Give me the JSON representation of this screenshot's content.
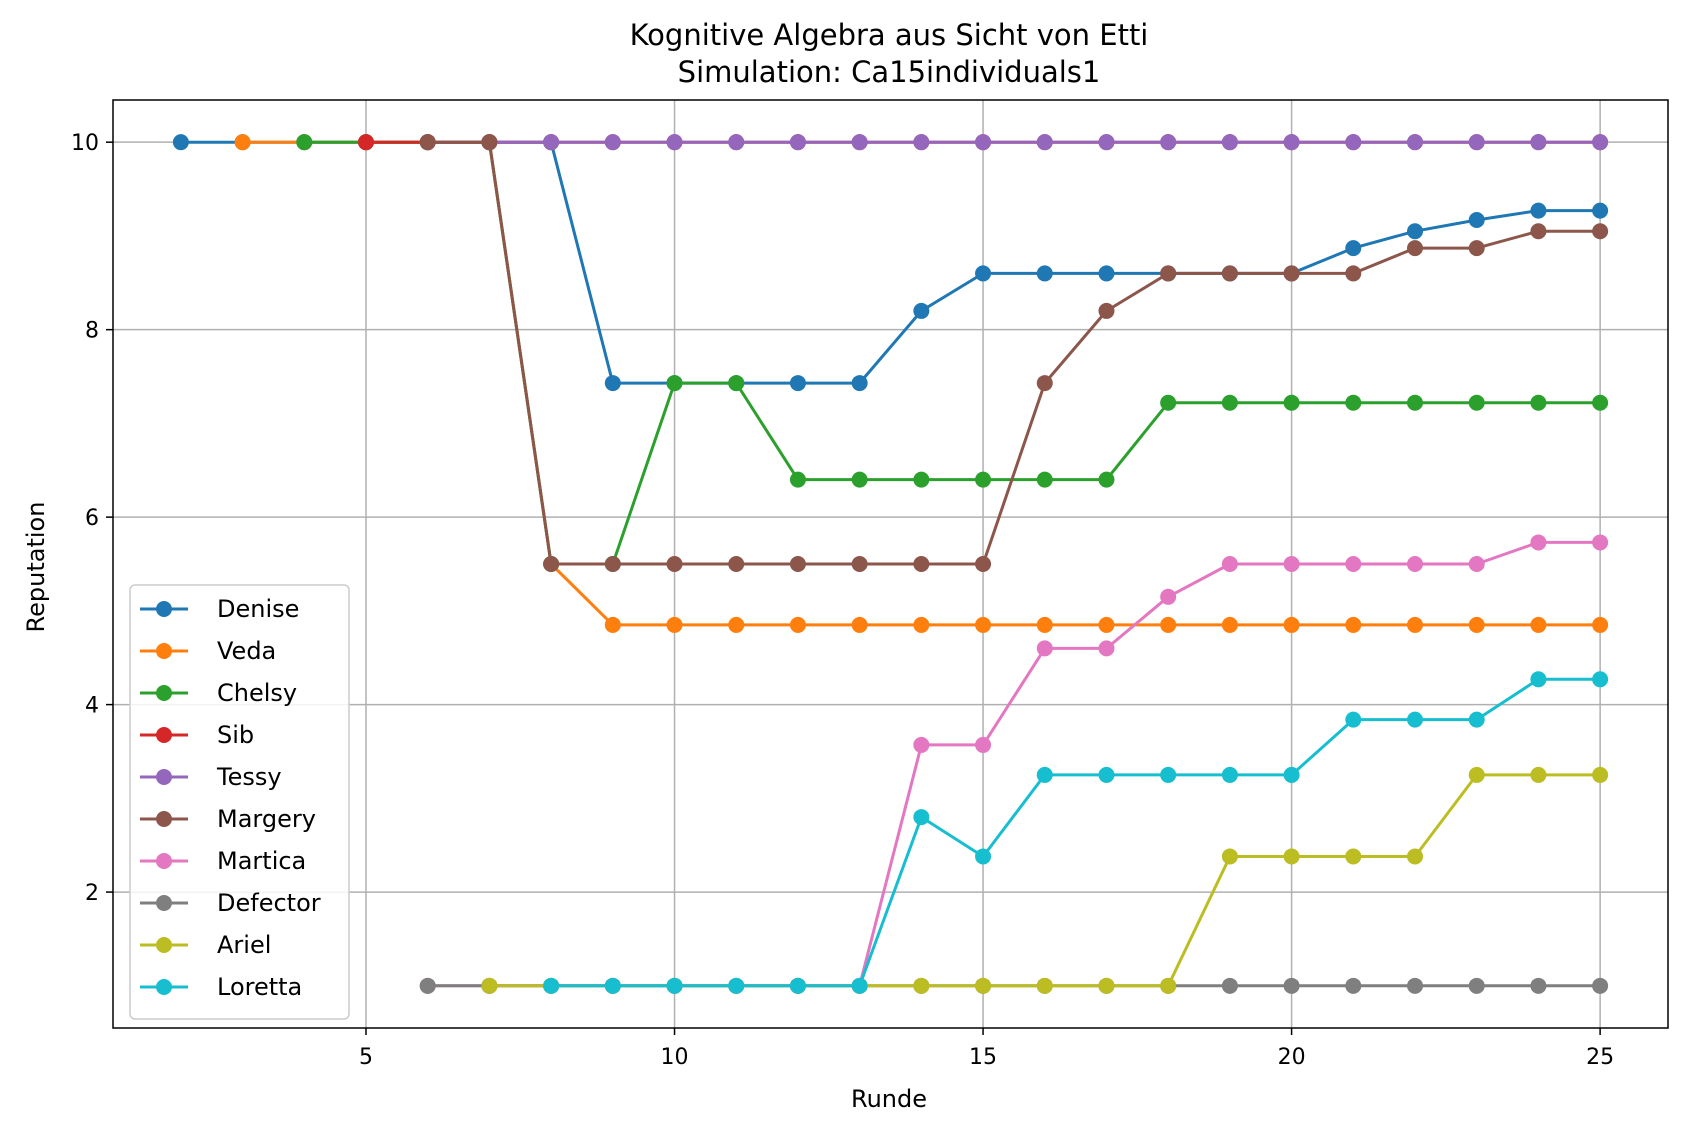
{
  "chart_data": {
    "type": "line",
    "title": "Kognitive Algebra aus Sicht von Etti",
    "subtitle": "Simulation: Ca15individuals1",
    "xlabel": "Runde",
    "ylabel": "Reputation",
    "xlim": [
      0.9,
      26.1
    ],
    "ylim": [
      0.55,
      10.45
    ],
    "xticks": [
      5,
      10,
      15,
      20,
      25
    ],
    "yticks": [
      2,
      4,
      6,
      8,
      10
    ],
    "grid": true,
    "legend_position": "lower-left",
    "series": [
      {
        "name": "Denise",
        "color": "#1f77b4",
        "x": [
          2,
          3,
          4,
          5,
          6,
          7,
          8,
          9,
          10,
          11,
          12,
          13,
          14,
          15,
          16,
          17,
          18,
          19,
          20,
          21,
          22,
          23,
          24,
          25
        ],
        "y": [
          10,
          10,
          10,
          10,
          10,
          10,
          10,
          7.43,
          7.43,
          7.43,
          7.43,
          7.43,
          8.2,
          8.6,
          8.6,
          8.6,
          8.6,
          8.6,
          8.6,
          8.87,
          9.05,
          9.17,
          9.27,
          9.27
        ]
      },
      {
        "name": "Veda",
        "color": "#ff7f0e",
        "x": [
          3,
          4,
          5,
          6,
          7,
          8,
          9,
          10,
          11,
          12,
          13,
          14,
          15,
          16,
          17,
          18,
          19,
          20,
          21,
          22,
          23,
          24,
          25
        ],
        "y": [
          10,
          10,
          10,
          10,
          10,
          5.5,
          4.85,
          4.85,
          4.85,
          4.85,
          4.85,
          4.85,
          4.85,
          4.85,
          4.85,
          4.85,
          4.85,
          4.85,
          4.85,
          4.85,
          4.85,
          4.85,
          4.85
        ]
      },
      {
        "name": "Chelsy",
        "color": "#2ca02c",
        "x": [
          4,
          5,
          6,
          7,
          8,
          9,
          10,
          11,
          12,
          13,
          14,
          15,
          16,
          17,
          18,
          19,
          20,
          21,
          22,
          23,
          24,
          25
        ],
        "y": [
          10,
          10,
          10,
          10,
          5.5,
          5.5,
          7.43,
          7.43,
          6.4,
          6.4,
          6.4,
          6.4,
          6.4,
          6.4,
          7.22,
          7.22,
          7.22,
          7.22,
          7.22,
          7.22,
          7.22,
          7.22
        ]
      },
      {
        "name": "Sib",
        "color": "#d62728",
        "x": [
          5,
          6,
          7,
          8,
          9,
          10,
          11,
          12,
          13,
          14,
          15,
          16,
          17,
          18,
          19,
          20,
          21,
          22,
          23,
          24,
          25
        ],
        "y": [
          10,
          10,
          10,
          10,
          10,
          10,
          10,
          10,
          10,
          10,
          10,
          10,
          10,
          10,
          10,
          10,
          10,
          10,
          10,
          10,
          10
        ]
      },
      {
        "name": "Tessy",
        "color": "#9467bd",
        "x": [
          6,
          7,
          8,
          9,
          10,
          11,
          12,
          13,
          14,
          15,
          16,
          17,
          18,
          19,
          20,
          21,
          22,
          23,
          24,
          25
        ],
        "y": [
          10,
          10,
          10,
          10,
          10,
          10,
          10,
          10,
          10,
          10,
          10,
          10,
          10,
          10,
          10,
          10,
          10,
          10,
          10,
          10
        ]
      },
      {
        "name": "Margery",
        "color": "#8c564b",
        "x": [
          6,
          7,
          8,
          9,
          10,
          11,
          12,
          13,
          14,
          15,
          16,
          17,
          18,
          19,
          20,
          21,
          22,
          23,
          24,
          25
        ],
        "y": [
          10,
          10,
          5.5,
          5.5,
          5.5,
          5.5,
          5.5,
          5.5,
          5.5,
          5.5,
          7.43,
          8.2,
          8.6,
          8.6,
          8.6,
          8.6,
          8.87,
          8.87,
          9.05,
          9.05
        ]
      },
      {
        "name": "Martica",
        "color": "#e377c2",
        "x": [
          6,
          7,
          8,
          9,
          10,
          11,
          12,
          13,
          14,
          15,
          16,
          17,
          18,
          19,
          20,
          21,
          22,
          23,
          24,
          25
        ],
        "y": [
          1,
          1,
          1,
          1,
          1,
          1,
          1,
          1,
          3.57,
          3.57,
          4.6,
          4.6,
          5.15,
          5.5,
          5.5,
          5.5,
          5.5,
          5.5,
          5.73,
          5.73
        ]
      },
      {
        "name": "Defector",
        "color": "#7f7f7f",
        "x": [
          6,
          7,
          8,
          9,
          10,
          11,
          12,
          13,
          14,
          15,
          16,
          17,
          18,
          19,
          20,
          21,
          22,
          23,
          24,
          25
        ],
        "y": [
          1,
          1,
          1,
          1,
          1,
          1,
          1,
          1,
          1,
          1,
          1,
          1,
          1,
          1,
          1,
          1,
          1,
          1,
          1,
          1
        ]
      },
      {
        "name": "Ariel",
        "color": "#bcbd22",
        "x": [
          7,
          8,
          9,
          10,
          11,
          12,
          13,
          14,
          15,
          16,
          17,
          18,
          19,
          20,
          21,
          22,
          23,
          24,
          25
        ],
        "y": [
          1,
          1,
          1,
          1,
          1,
          1,
          1,
          1,
          1,
          1,
          1,
          1,
          2.38,
          2.38,
          2.38,
          2.38,
          3.25,
          3.25,
          3.25
        ]
      },
      {
        "name": "Loretta",
        "color": "#17becf",
        "x": [
          8,
          9,
          10,
          11,
          12,
          13,
          14,
          15,
          16,
          17,
          18,
          19,
          20,
          21,
          22,
          23,
          24,
          25
        ],
        "y": [
          1,
          1,
          1,
          1,
          1,
          1,
          2.8,
          2.38,
          3.25,
          3.25,
          3.25,
          3.25,
          3.25,
          3.84,
          3.84,
          3.84,
          4.27,
          4.27
        ]
      }
    ]
  }
}
